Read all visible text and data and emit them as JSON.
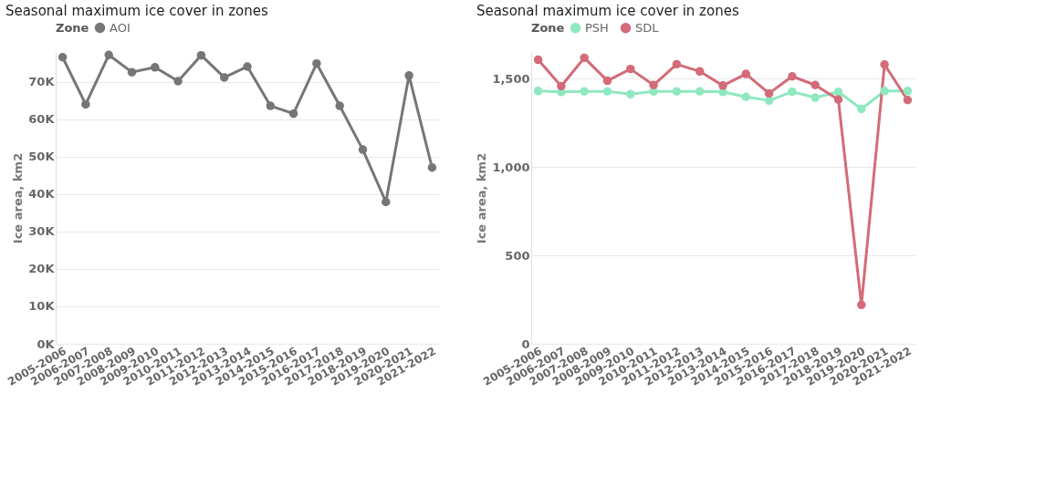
{
  "chart_data": [
    {
      "type": "line",
      "title": "Seasonal maximum ice cover in zones",
      "ylabel": "Ice area, km2",
      "legend_title": "Zone",
      "legend": "top",
      "grid": "y",
      "marker": "circle",
      "line_style": "solid",
      "categories": [
        "2005-2006",
        "2006-2007",
        "2007-2008",
        "2008-2009",
        "2009-2010",
        "2010-2011",
        "2011-2012",
        "2012-2013",
        "2013-2014",
        "2014-2015",
        "2015-2016",
        "2016-2017",
        "2017-2018",
        "2018-2019",
        "2019-2020",
        "2020-2021",
        "2021-2022"
      ],
      "ylim": [
        0,
        78000
      ],
      "yticks": [
        {
          "value": 0,
          "label": "0K"
        },
        {
          "value": 10000,
          "label": "10K"
        },
        {
          "value": 20000,
          "label": "20K"
        },
        {
          "value": 30000,
          "label": "30K"
        },
        {
          "value": 40000,
          "label": "40K"
        },
        {
          "value": 50000,
          "label": "50K"
        },
        {
          "value": 60000,
          "label": "60K"
        },
        {
          "value": 70000,
          "label": "70K"
        }
      ],
      "series": [
        {
          "name": "AOI",
          "color": "#767676",
          "values": [
            76600,
            64000,
            77200,
            72600,
            73900,
            70200,
            77100,
            71200,
            74100,
            63600,
            61500,
            74900,
            63600,
            51900,
            37900,
            71700,
            47100
          ]
        }
      ]
    },
    {
      "type": "line",
      "title": "Seasonal maximum ice cover in zones",
      "ylabel": "Ice area, km2",
      "legend_title": "Zone",
      "legend": "top",
      "grid": "y",
      "marker": "circle",
      "line_style": "solid",
      "categories": [
        "2005-2006",
        "2006-2007",
        "2007-2008",
        "2008-2009",
        "2009-2010",
        "2010-2011",
        "2011-2012",
        "2012-2013",
        "2013-2014",
        "2014-2015",
        "2015-2016",
        "2016-2017",
        "2017-2018",
        "2018-2019",
        "2019-2020",
        "2020-2021",
        "2021-2022"
      ],
      "ylim": [
        0,
        1650
      ],
      "yticks": [
        0,
        500,
        {
          "value": 1000,
          "label": "1,000"
        },
        {
          "value": 1500,
          "label": "1,500"
        }
      ],
      "series": [
        {
          "name": "PSH",
          "color": "#8fe8bf",
          "values": [
            1429,
            1424,
            1427,
            1427,
            1411,
            1427,
            1427,
            1427,
            1424,
            1396,
            1375,
            1425,
            1392,
            1424,
            1328,
            1429,
            1429
          ]
        },
        {
          "name": "SDL",
          "color": "#d36b78",
          "values": [
            1606,
            1457,
            1617,
            1487,
            1554,
            1463,
            1581,
            1540,
            1460,
            1526,
            1416,
            1512,
            1463,
            1381,
            220,
            1579,
            1378
          ]
        }
      ]
    }
  ]
}
